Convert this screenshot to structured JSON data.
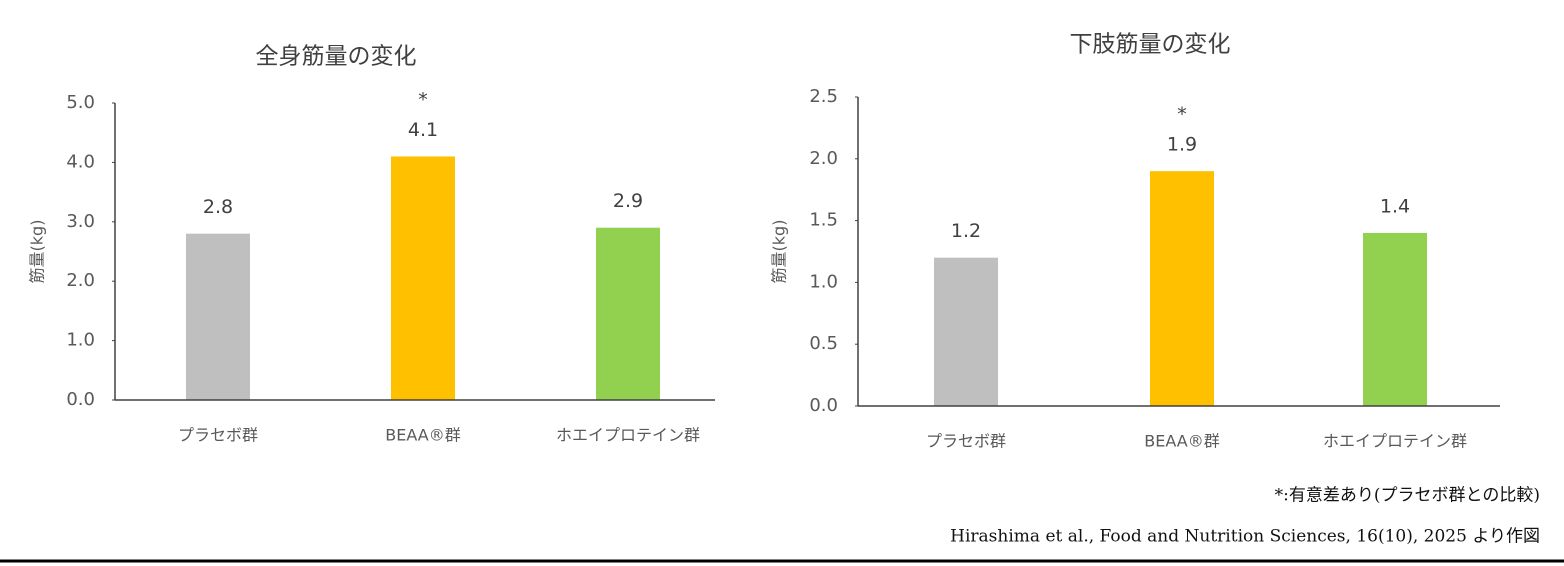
{
  "chart_data": [
    {
      "type": "bar",
      "title": "全身筋量の変化",
      "y_label": "筋量(kg)",
      "categories": [
        "プラセボ群",
        "BEAA®群",
        "ホエイプロテイン群"
      ],
      "values": [
        2.8,
        4.1,
        2.9
      ],
      "colors": [
        "#bfbfbf",
        "#ffc000",
        "#92d050"
      ],
      "significance_marks": [
        null,
        "*",
        null
      ],
      "ylim": [
        0,
        5
      ],
      "yticks": [
        {
          "value": 0,
          "label": "0.0"
        },
        {
          "value": 1,
          "label": "1.0"
        },
        {
          "value": 2,
          "label": "2.0"
        },
        {
          "value": 3,
          "label": "3.0"
        },
        {
          "value": 4,
          "label": "4.0"
        },
        {
          "value": 5,
          "label": "5.0"
        }
      ],
      "grid": false
    },
    {
      "type": "bar",
      "title": "下肢筋量の変化",
      "y_label": "筋量(kg)",
      "categories": [
        "プラセボ群",
        "BEAA®群",
        "ホエイプロテイン群"
      ],
      "values": [
        1.2,
        1.9,
        1.4
      ],
      "colors": [
        "#bfbfbf",
        "#ffc000",
        "#92d050"
      ],
      "significance_marks": [
        null,
        "*",
        null
      ],
      "ylim": [
        0,
        2.5
      ],
      "yticks": [
        {
          "value": 0,
          "label": "0.0"
        },
        0.5,
        {
          "value": 1,
          "label": "1.0"
        },
        1.5,
        {
          "value": 2,
          "label": "2.0"
        },
        2.5
      ],
      "grid": false
    }
  ],
  "notes": [
    "*:有意差あり(プラセボ群との比較)",
    "Hirashima et al., Food and Nutrition Sciences, 16(10), 2025 より作図"
  ]
}
